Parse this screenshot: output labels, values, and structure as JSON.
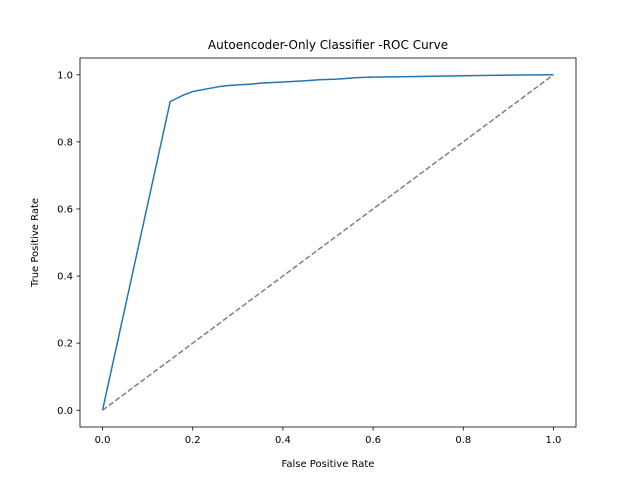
{
  "chart_data": {
    "type": "line",
    "title": "Autoencoder-Only Classifier -ROC Curve",
    "xlabel": "False Positive Rate",
    "ylabel": "True Positive Rate",
    "xlim": [
      -0.05,
      1.05
    ],
    "ylim": [
      -0.05,
      1.05
    ],
    "xticks": [
      "0.0",
      "0.2",
      "0.4",
      "0.6",
      "0.8",
      "1.0"
    ],
    "yticks": [
      "0.0",
      "0.2",
      "0.4",
      "0.6",
      "0.8",
      "1.0"
    ],
    "grid": false,
    "series": [
      {
        "color": "#1f77b4",
        "style": "solid",
        "x": [
          0.0,
          0.15,
          0.165,
          0.18,
          0.2,
          0.22,
          0.24,
          0.26,
          0.28,
          0.3,
          0.33,
          0.35,
          0.38,
          0.42,
          0.45,
          0.48,
          0.52,
          0.55,
          0.57,
          0.6,
          0.7,
          0.8,
          0.9,
          1.0
        ],
        "y": [
          0.0,
          0.92,
          0.93,
          0.94,
          0.95,
          0.955,
          0.96,
          0.965,
          0.968,
          0.97,
          0.972,
          0.975,
          0.977,
          0.98,
          0.982,
          0.985,
          0.987,
          0.99,
          0.992,
          0.993,
          0.995,
          0.997,
          0.999,
          1.0
        ]
      },
      {
        "color": "#808080",
        "style": "dashed",
        "x": [
          0.0,
          1.0
        ],
        "y": [
          0.0,
          1.0
        ]
      }
    ]
  }
}
